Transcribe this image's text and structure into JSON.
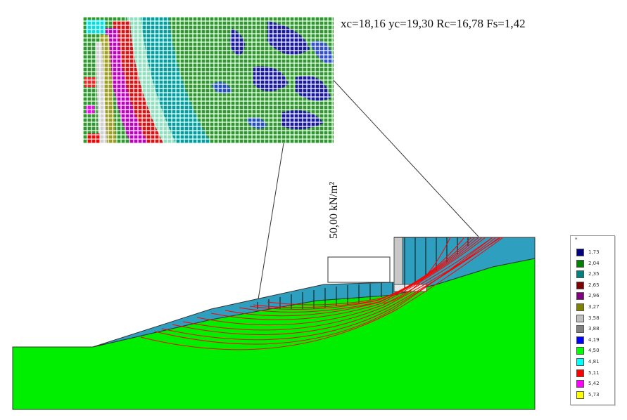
{
  "result": "xc=18,16 yc=19,30 Rc=16,78 Fs=1,42",
  "load_label": "50,00 kN/m²",
  "legend": {
    "marker": "*",
    "entries": [
      {
        "value": "1,73",
        "color": "#000080"
      },
      {
        "value": "2,04",
        "color": "#008000"
      },
      {
        "value": "2,35",
        "color": "#008080"
      },
      {
        "value": "2,65",
        "color": "#800000"
      },
      {
        "value": "2,96",
        "color": "#800080"
      },
      {
        "value": "3,27",
        "color": "#808000"
      },
      {
        "value": "3,58",
        "color": "#c0c0c0"
      },
      {
        "value": "3,88",
        "color": "#808080"
      },
      {
        "value": "4,19",
        "color": "#0000ff"
      },
      {
        "value": "4,50",
        "color": "#00ff00"
      },
      {
        "value": "4,81",
        "color": "#00ffff"
      },
      {
        "value": "5,11",
        "color": "#ff0000"
      },
      {
        "value": "5,42",
        "color": "#ff00ff"
      },
      {
        "value": "5,73",
        "color": "#ffff00"
      }
    ]
  },
  "colors": {
    "ground": "#00ee00",
    "soil_layer": "#2f9fbf",
    "wall": "#c8c8c8",
    "slip_surface": "#ff0000"
  }
}
